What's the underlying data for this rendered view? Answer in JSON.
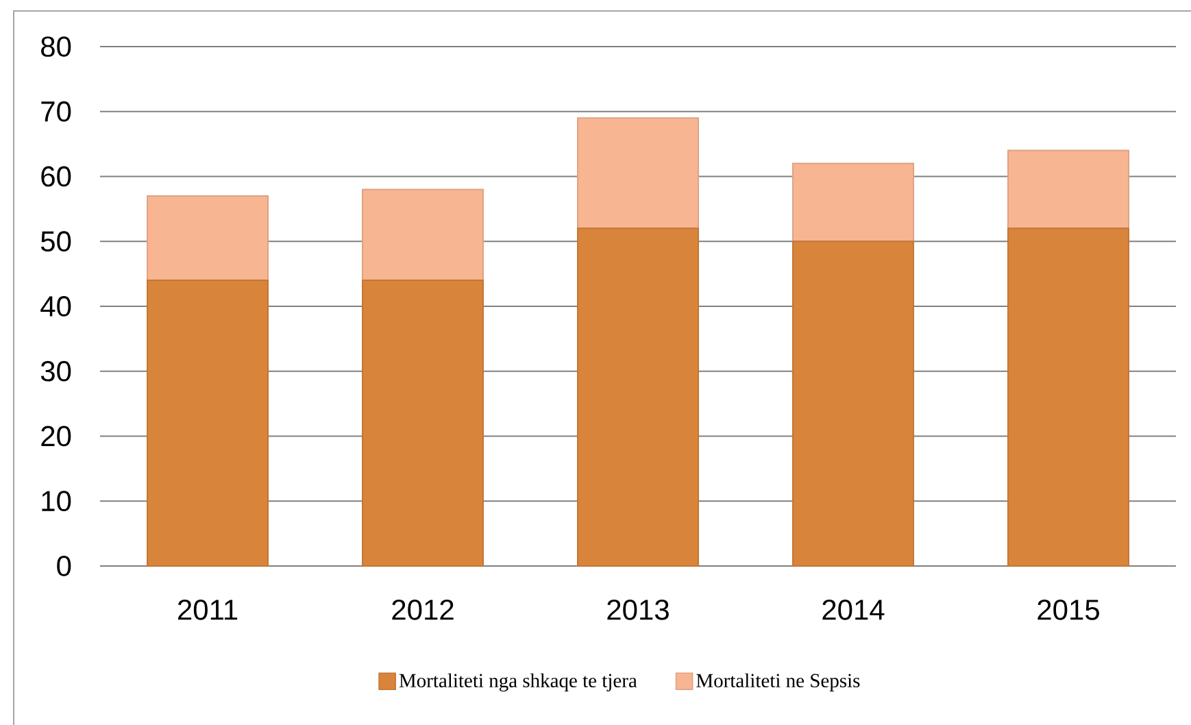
{
  "chart_data": {
    "type": "bar",
    "stacked": true,
    "categories": [
      "2011",
      "2012",
      "2013",
      "2014",
      "2015"
    ],
    "series": [
      {
        "name": "Mortaliteti nga shkaqe te tjera",
        "color": "#d9843b",
        "values": [
          44,
          44,
          52,
          50,
          52
        ]
      },
      {
        "name": "Mortaliteti ne Sepsis",
        "color": "#f7b592",
        "values": [
          13,
          14,
          17,
          12,
          12
        ]
      }
    ],
    "ylim": [
      0,
      80
    ],
    "yticks": [
      0,
      10,
      20,
      30,
      40,
      50,
      60,
      70,
      80
    ],
    "grid": "y",
    "legend": "bottom"
  }
}
